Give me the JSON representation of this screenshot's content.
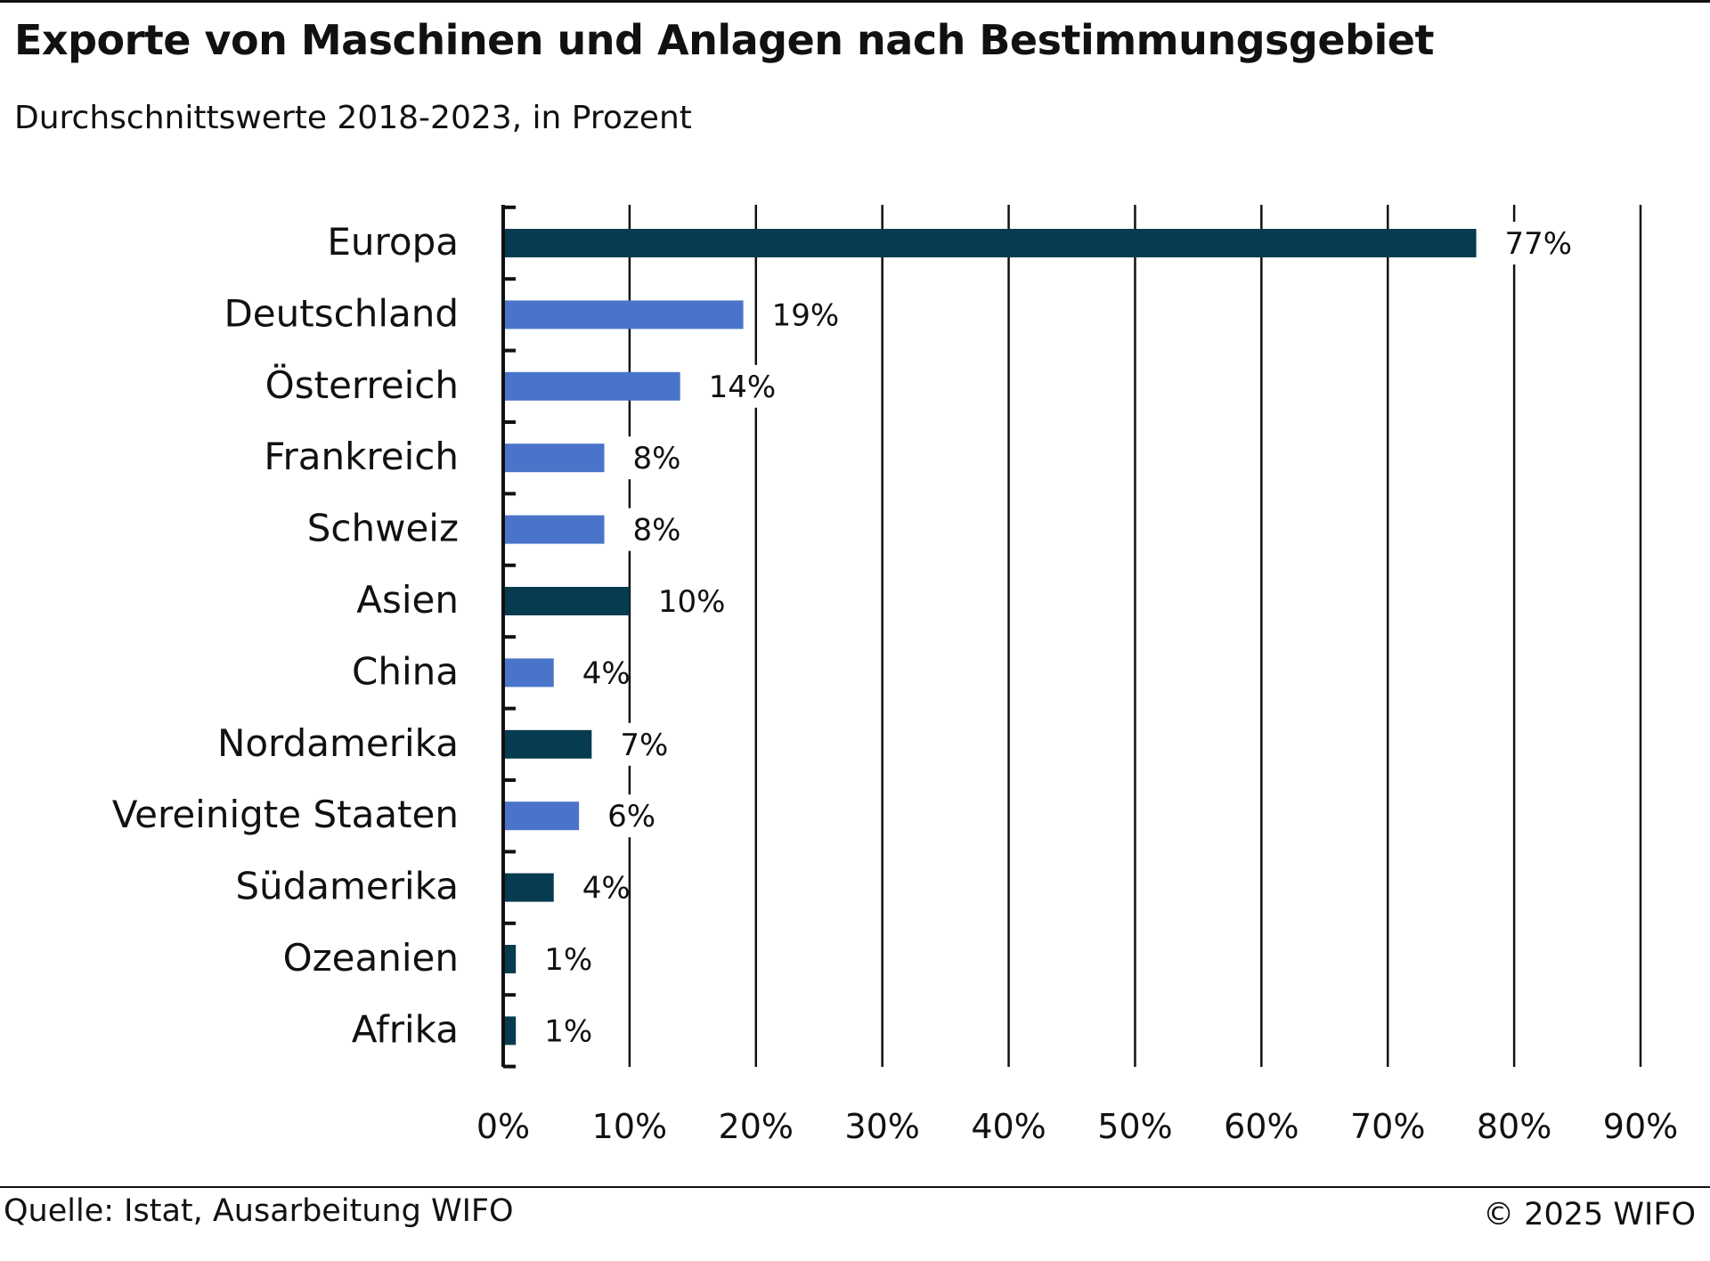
{
  "chart_data": {
    "type": "bar",
    "orientation": "horizontal",
    "title": "Exporte von Maschinen und Anlagen nach Bestimmungsgebiet",
    "subtitle": "Durchschnittswerte 2018-2023, in Prozent",
    "categories": [
      "Europa",
      "Deutschland",
      "Österreich",
      "Frankreich",
      "Schweiz",
      "Asien",
      "China",
      "Nordamerika",
      "Vereinigte Staaten",
      "Südamerika",
      "Ozeanien",
      "Afrika"
    ],
    "values": [
      77,
      19,
      14,
      8,
      8,
      10,
      4,
      7,
      6,
      4,
      1,
      1
    ],
    "value_labels": [
      "77%",
      "19%",
      "14%",
      "8%",
      "8%",
      "10%",
      "4%",
      "7%",
      "6%",
      "4%",
      "1%",
      "1%"
    ],
    "bar_types": [
      "region",
      "country",
      "country",
      "country",
      "country",
      "region",
      "country",
      "region",
      "country",
      "region",
      "region",
      "region"
    ],
    "xlim": [
      0,
      90
    ],
    "xticks": [
      0,
      10,
      20,
      30,
      40,
      50,
      60,
      70,
      80,
      90
    ],
    "xtick_labels": [
      "0%",
      "10%",
      "20%",
      "30%",
      "40%",
      "50%",
      "60%",
      "70%",
      "80%",
      "90%"
    ],
    "grid": true,
    "legend": "none",
    "colors": {
      "region": "#073b4f",
      "country": "#4a74c9",
      "grid": "#111111",
      "axis": "#111111"
    }
  },
  "footer": {
    "source": "Quelle: Istat, Ausarbeitung WIFO",
    "copyright": "© 2025 WIFO"
  }
}
